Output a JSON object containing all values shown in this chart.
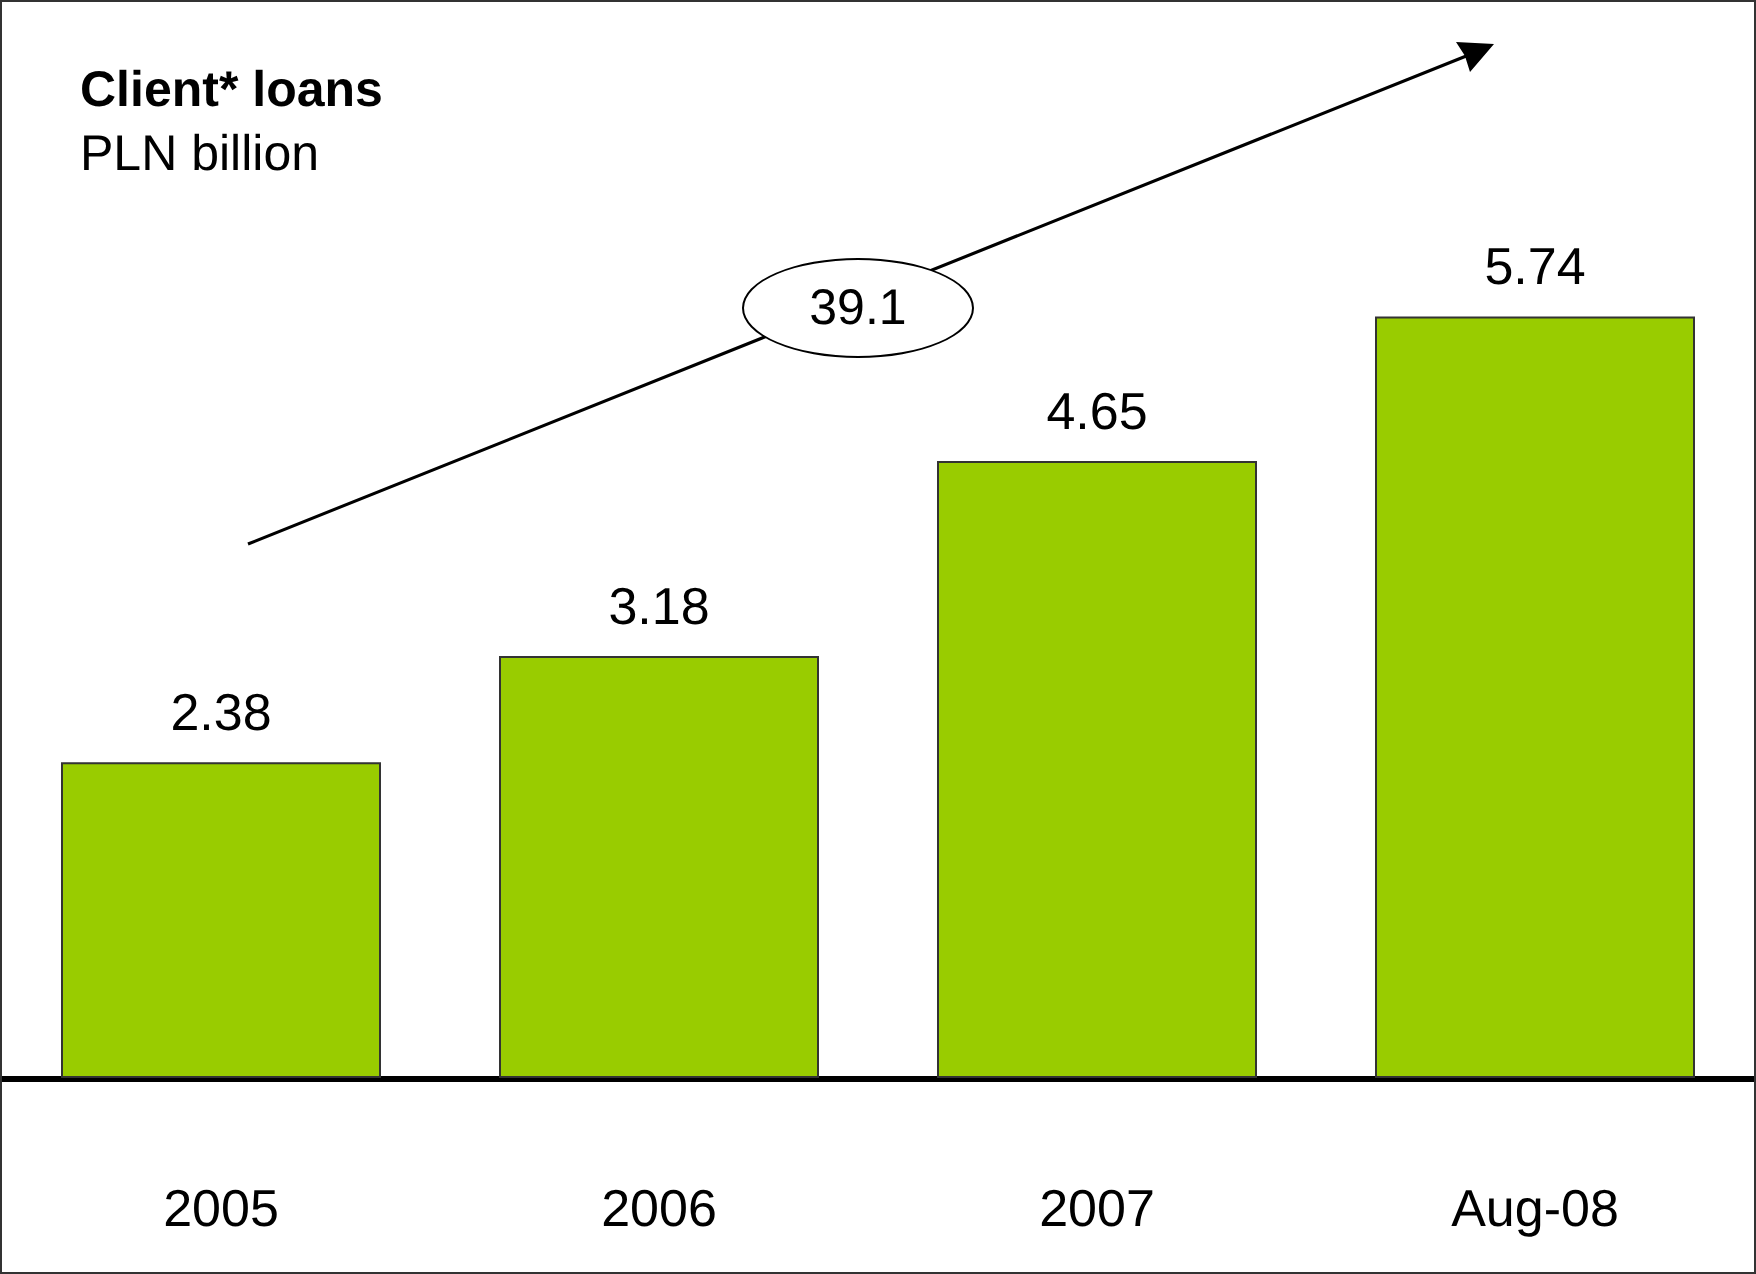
{
  "chart_data": {
    "type": "bar",
    "title": "Client* loans",
    "subtitle": "PLN billion",
    "categories": [
      "2005",
      "2006",
      "2007",
      "Aug-08"
    ],
    "values": [
      2.38,
      3.18,
      4.65,
      5.74
    ],
    "color": "#99cc00",
    "data_labels": true,
    "annotations": [
      "39.1"
    ]
  }
}
